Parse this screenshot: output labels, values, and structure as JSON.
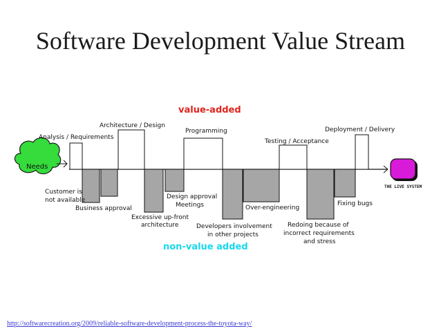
{
  "slide": {
    "title": "Software Development Value Stream",
    "source_url": "http://softwarecreation.org/2009/reliable-software-development-process-the-toyota-way/"
  },
  "diagram": {
    "legend_value_added": "value-added",
    "legend_non_value_added": "non-value added",
    "start_label": "Needs",
    "end_label": "THE LIVE SYSTEM",
    "value_added_steps": [
      "Analysis / Requirements",
      "Architecture / Design",
      "Programming",
      "Testing / Acceptance",
      "Deployment / Delivery"
    ],
    "waste_steps": [
      [
        "Customer is",
        "not available"
      ],
      [
        "Business approval"
      ],
      [
        "Excessive up-front",
        "architecture"
      ],
      [
        "Design approval",
        "Meetings"
      ],
      [
        "Developers involvement",
        "in other projects"
      ],
      [
        "Over-engineering"
      ],
      [
        "Redoing because of",
        "incorrect requirements",
        "and stress"
      ],
      [
        "Fixing bugs"
      ]
    ],
    "colors": {
      "value_added_text": "#e1241d",
      "non_value_added_text": "#19d8ee",
      "waste_box": "#a6a6a6",
      "needs_cloud": "#35dc3b",
      "live_system": "#d81bd8"
    }
  }
}
